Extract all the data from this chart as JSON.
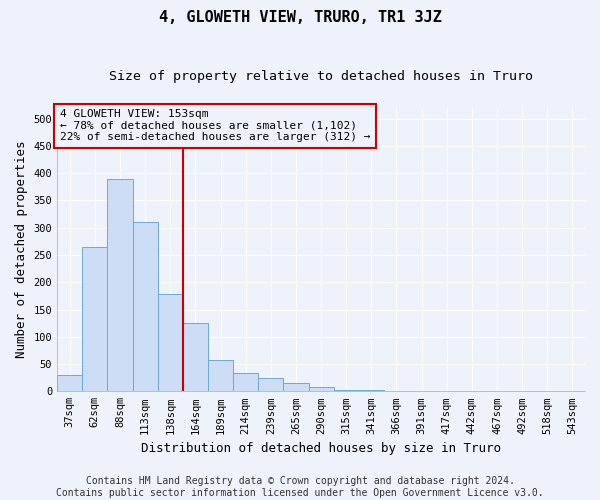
{
  "title": "4, GLOWETH VIEW, TRURO, TR1 3JZ",
  "subtitle": "Size of property relative to detached houses in Truro",
  "xlabel": "Distribution of detached houses by size in Truro",
  "ylabel": "Number of detached properties",
  "footer_line1": "Contains HM Land Registry data © Crown copyright and database right 2024.",
  "footer_line2": "Contains public sector information licensed under the Open Government Licence v3.0.",
  "categories": [
    "37sqm",
    "62sqm",
    "88sqm",
    "113sqm",
    "138sqm",
    "164sqm",
    "189sqm",
    "214sqm",
    "239sqm",
    "265sqm",
    "290sqm",
    "315sqm",
    "341sqm",
    "366sqm",
    "391sqm",
    "417sqm",
    "442sqm",
    "467sqm",
    "492sqm",
    "518sqm",
    "543sqm"
  ],
  "values": [
    30,
    265,
    390,
    310,
    178,
    125,
    58,
    33,
    25,
    15,
    8,
    3,
    2,
    1,
    0,
    0,
    0,
    0,
    0,
    0,
    0
  ],
  "bar_color": "#ccddf5",
  "bar_edge_color": "#6aaad4",
  "ylim": [
    0,
    520
  ],
  "yticks": [
    0,
    50,
    100,
    150,
    200,
    250,
    300,
    350,
    400,
    450,
    500
  ],
  "vline_color": "#cc0000",
  "annotation_text": "4 GLOWETH VIEW: 153sqm\n← 78% of detached houses are smaller (1,102)\n22% of semi-detached houses are larger (312) →",
  "annotation_box_color": "#cc0000",
  "background_color": "#eef2fa",
  "grid_color": "#ffffff",
  "title_fontsize": 11,
  "subtitle_fontsize": 9.5,
  "axis_label_fontsize": 9,
  "tick_fontsize": 7.5,
  "footer_fontsize": 7,
  "annot_fontsize": 8
}
